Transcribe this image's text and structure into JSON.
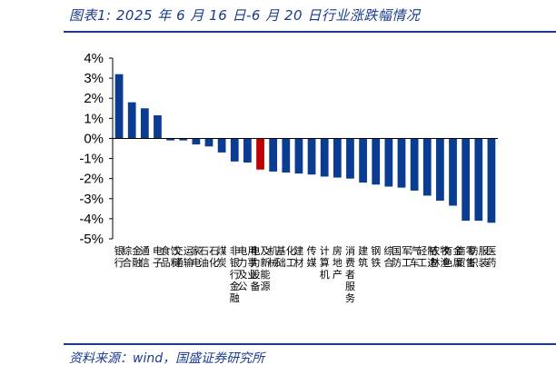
{
  "header": {
    "title": "图表1:  2025 年 6 月 16 日-6 月 20 日行业涨跌幅情况"
  },
  "footer": {
    "source": "资料来源：wind，国盛证券研究所"
  },
  "colors": {
    "accent": "#1a3a8c",
    "bar": "#0a3d91",
    "highlight": "#c00000"
  },
  "chart_data": {
    "type": "bar",
    "title": "",
    "xlabel": "",
    "ylabel": "",
    "ylim": [
      -5,
      4
    ],
    "yticks": [
      "4%",
      "3%",
      "2%",
      "1%",
      "0%",
      "-1%",
      "-2%",
      "-3%",
      "-4%",
      "-5%"
    ],
    "grid": false,
    "highlight_category": "电力设备及新能源",
    "categories": [
      "银行",
      "综合金融",
      "通信",
      "电子",
      "食品饮料",
      "交通运输",
      "家电",
      "石油石化",
      "煤炭",
      "非银行金融",
      "电力及公用事业",
      "电力设备及新能源",
      "机械",
      "基础化工",
      "建材",
      "传媒",
      "计算机",
      "房地产",
      "消费者服务",
      "建筑",
      "钢铁",
      "综合",
      "国防军工",
      "汽车",
      "轻工制造",
      "农林牧渔",
      "有色金属",
      "商贸零售",
      "纺织服装",
      "医药"
    ],
    "values": [
      3.2,
      1.8,
      1.5,
      1.15,
      -0.1,
      -0.1,
      -0.3,
      -0.4,
      -0.7,
      -1.15,
      -1.2,
      -1.55,
      -1.65,
      -1.7,
      -1.75,
      -1.8,
      -1.9,
      -1.95,
      -2.0,
      -2.2,
      -2.3,
      -2.4,
      -2.45,
      -2.6,
      -2.85,
      -3.1,
      -3.35,
      -4.1,
      -4.1,
      -4.2
    ]
  }
}
